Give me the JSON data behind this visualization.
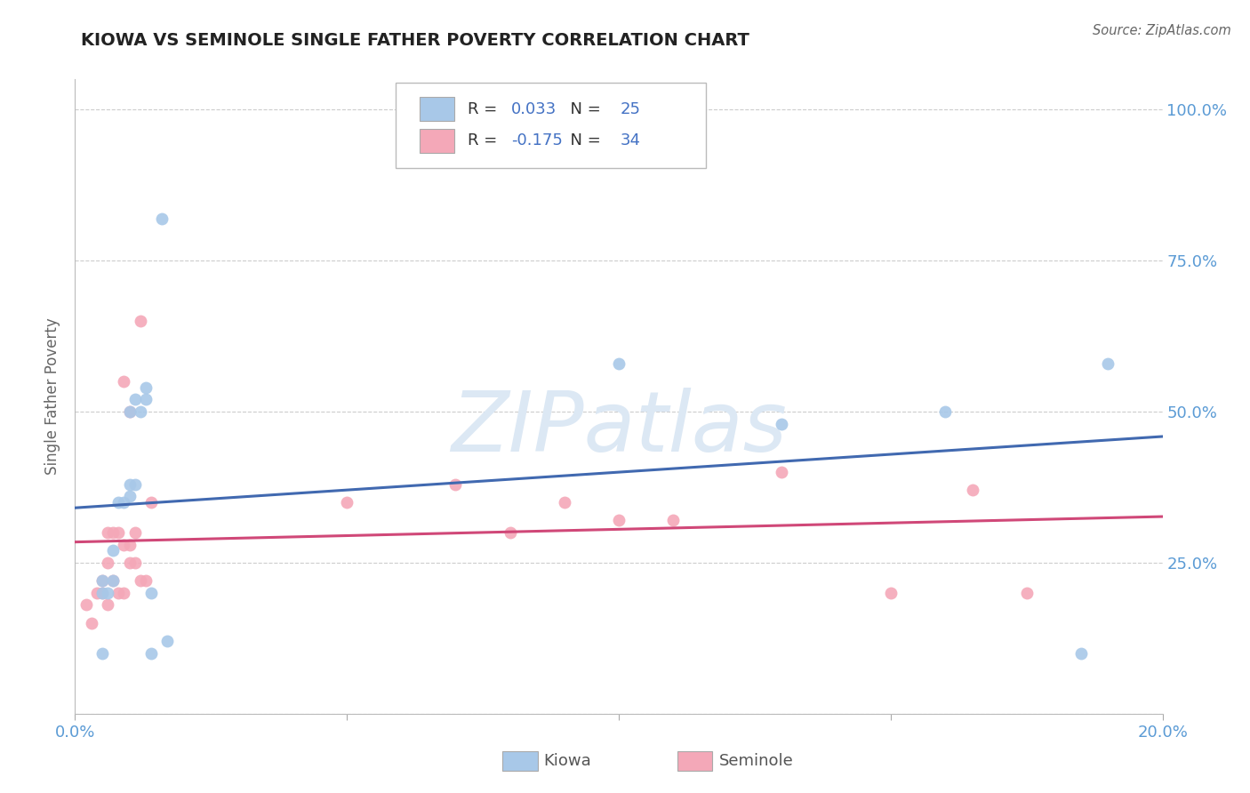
{
  "title": "KIOWA VS SEMINOLE SINGLE FATHER POVERTY CORRELATION CHART",
  "source": "Source: ZipAtlas.com",
  "ylabel_label": "Single Father Poverty",
  "x_min": 0.0,
  "x_max": 0.2,
  "y_min": 0.0,
  "y_max": 1.05,
  "x_ticks": [
    0.0,
    0.05,
    0.1,
    0.15,
    0.2
  ],
  "x_tick_labels": [
    "0.0%",
    "",
    "",
    "",
    "20.0%"
  ],
  "y_ticks": [
    0.0,
    0.25,
    0.5,
    0.75,
    1.0
  ],
  "y_tick_labels": [
    "",
    "25.0%",
    "50.0%",
    "75.0%",
    "100.0%"
  ],
  "kiowa_R": 0.033,
  "kiowa_N": 25,
  "seminole_R": -0.175,
  "seminole_N": 34,
  "kiowa_color": "#a8c8e8",
  "seminole_color": "#f4a8b8",
  "kiowa_line_color": "#4169b0",
  "seminole_line_color": "#d04878",
  "background_color": "#ffffff",
  "grid_color": "#cccccc",
  "title_color": "#222222",
  "axis_label_color": "#5b9bd5",
  "watermark_color": "#dce8f4",
  "marker_size": 100,
  "kiowa_x": [
    0.005,
    0.005,
    0.005,
    0.006,
    0.007,
    0.007,
    0.008,
    0.009,
    0.01,
    0.01,
    0.01,
    0.011,
    0.011,
    0.012,
    0.013,
    0.013,
    0.014,
    0.014,
    0.016,
    0.017,
    0.1,
    0.13,
    0.16,
    0.185,
    0.19
  ],
  "kiowa_y": [
    0.1,
    0.2,
    0.22,
    0.2,
    0.22,
    0.27,
    0.35,
    0.35,
    0.36,
    0.38,
    0.5,
    0.38,
    0.52,
    0.5,
    0.52,
    0.54,
    0.1,
    0.2,
    0.82,
    0.12,
    0.58,
    0.48,
    0.5,
    0.1,
    0.58
  ],
  "seminole_x": [
    0.002,
    0.003,
    0.004,
    0.005,
    0.005,
    0.006,
    0.006,
    0.006,
    0.007,
    0.007,
    0.008,
    0.008,
    0.009,
    0.009,
    0.009,
    0.01,
    0.01,
    0.01,
    0.011,
    0.011,
    0.012,
    0.012,
    0.013,
    0.014,
    0.05,
    0.07,
    0.08,
    0.09,
    0.1,
    0.11,
    0.13,
    0.15,
    0.165,
    0.175
  ],
  "seminole_y": [
    0.18,
    0.15,
    0.2,
    0.2,
    0.22,
    0.18,
    0.25,
    0.3,
    0.22,
    0.3,
    0.2,
    0.3,
    0.2,
    0.28,
    0.55,
    0.25,
    0.28,
    0.5,
    0.25,
    0.3,
    0.22,
    0.65,
    0.22,
    0.35,
    0.35,
    0.38,
    0.3,
    0.35,
    0.32,
    0.32,
    0.4,
    0.2,
    0.37,
    0.2
  ]
}
